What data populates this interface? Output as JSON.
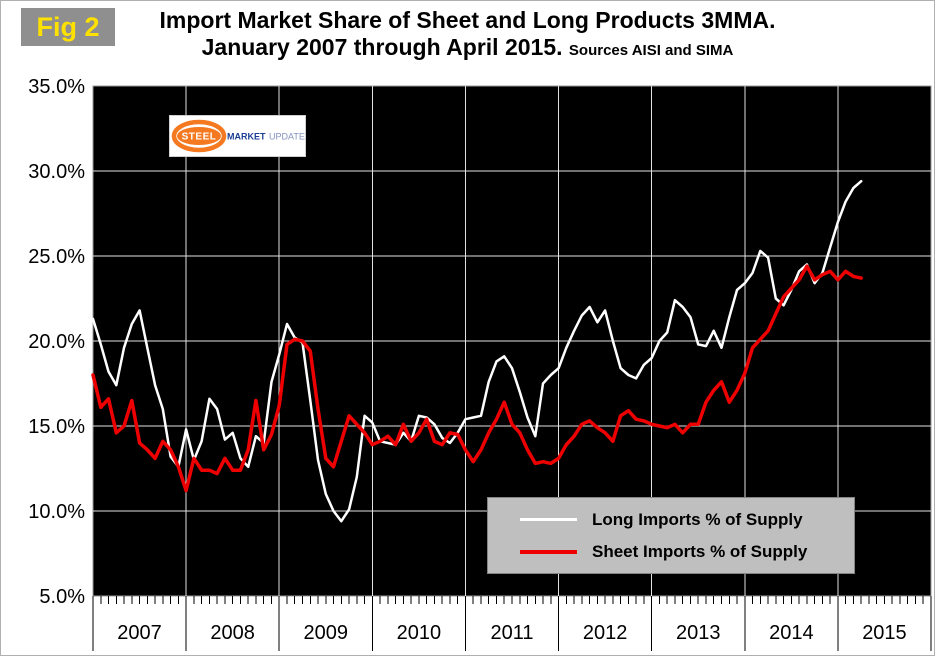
{
  "figure": {
    "label": "Fig 2",
    "label_bg": "#8f8f8f",
    "label_color": "#ffe100",
    "title_line1": "Import Market Share of Sheet and Long Products 3MMA.",
    "title_line2": "January 2007 through April 2015.",
    "sources": "Sources AISI and SIMA"
  },
  "logo": {
    "word1": "STEEL",
    "word2": "MARKET",
    "word3": "UPDATE",
    "orange": "#f47920",
    "blue": "#1b3e94",
    "light_blue": "#8593bd"
  },
  "legend": {
    "bg": "#bfbfbf",
    "position": "bottom-right-inside"
  },
  "chart_data": {
    "type": "line",
    "title": "Import Market Share of Sheet and Long Products 3MMA. January 2007 through April 2015.",
    "subtitle": "Sources AISI and SIMA",
    "xlabel": "",
    "ylabel": "",
    "x_start": "2007-01",
    "x_end": "2015-04",
    "x_axis_months_total": 108,
    "x_year_labels": [
      "2007",
      "2008",
      "2009",
      "2010",
      "2011",
      "2012",
      "2013",
      "2014",
      "2015"
    ],
    "ylim": [
      5,
      35
    ],
    "y_ticks": [
      {
        "value": 35,
        "label": "35.0%"
      },
      {
        "value": 30,
        "label": "30.0%"
      },
      {
        "value": 25,
        "label": "25.0%"
      },
      {
        "value": 20,
        "label": "20.0%"
      },
      {
        "value": 15,
        "label": "15.0%"
      },
      {
        "value": 10,
        "label": "10.0%"
      },
      {
        "value": 5,
        "label": "5.0%"
      }
    ],
    "grid": {
      "h_values": [
        10,
        15,
        20,
        25,
        30
      ],
      "v_month_indices": [
        12,
        24,
        36,
        48,
        60,
        72,
        84,
        96
      ],
      "color": "#e2e2e2"
    },
    "plot_bg": "#000000",
    "series": [
      {
        "name": "Long Imports % of Supply",
        "color": "#ffffff",
        "values": [
          21.3,
          19.8,
          18.2,
          17.4,
          19.6,
          21.0,
          21.8,
          19.6,
          17.4,
          16.0,
          13.2,
          12.6,
          14.8,
          13.0,
          14.1,
          16.6,
          16.0,
          14.2,
          14.6,
          13.1,
          12.6,
          14.4,
          14.0,
          17.6,
          19.2,
          21.0,
          20.2,
          19.9,
          16.5,
          13.0,
          11.0,
          10.0,
          9.4,
          10.1,
          12.0,
          15.6,
          15.2,
          14.1,
          14.0,
          13.9,
          14.6,
          14.1,
          15.6,
          15.5,
          15.1,
          14.3,
          14.0,
          14.6,
          15.4,
          15.5,
          15.6,
          17.6,
          18.8,
          19.1,
          18.4,
          17.0,
          15.5,
          14.4,
          17.5,
          18.0,
          18.4,
          19.6,
          20.6,
          21.5,
          22.0,
          21.1,
          21.8,
          20.0,
          18.4,
          18.0,
          17.8,
          18.6,
          19.0,
          20.0,
          20.5,
          22.4,
          22.0,
          21.4,
          19.8,
          19.7,
          20.6,
          19.6,
          21.4,
          23.0,
          23.4,
          24.0,
          25.3,
          24.9,
          22.5,
          22.1,
          23.0,
          24.1,
          24.5,
          23.4,
          24.0,
          25.5,
          27.0,
          28.2,
          29.0,
          29.4
        ]
      },
      {
        "name": "Sheet Imports % of Supply",
        "color": "#ee0000",
        "values": [
          18.0,
          16.1,
          16.6,
          14.6,
          15.0,
          16.5,
          14.0,
          13.6,
          13.1,
          14.1,
          13.6,
          12.6,
          11.2,
          13.1,
          12.4,
          12.4,
          12.2,
          13.1,
          12.4,
          12.4,
          13.6,
          16.5,
          13.6,
          14.5,
          16.2,
          19.8,
          20.1,
          20.0,
          19.4,
          16.0,
          13.1,
          12.6,
          14.1,
          15.6,
          15.1,
          14.6,
          13.9,
          14.1,
          14.4,
          13.9,
          15.1,
          14.1,
          14.6,
          15.4,
          14.1,
          13.9,
          14.6,
          14.5,
          13.6,
          12.9,
          13.6,
          14.6,
          15.4,
          16.4,
          15.1,
          14.6,
          13.6,
          12.8,
          12.9,
          12.8,
          13.1,
          13.9,
          14.4,
          15.1,
          15.3,
          14.9,
          14.6,
          14.1,
          15.6,
          15.9,
          15.4,
          15.3,
          15.1,
          15.0,
          14.9,
          15.1,
          14.6,
          15.1,
          15.1,
          16.4,
          17.1,
          17.6,
          16.4,
          17.1,
          18.1,
          19.6,
          20.1,
          20.6,
          21.6,
          22.6,
          23.1,
          23.6,
          24.4,
          23.6,
          23.9,
          24.1,
          23.6,
          24.1,
          23.8,
          23.7
        ]
      }
    ]
  }
}
